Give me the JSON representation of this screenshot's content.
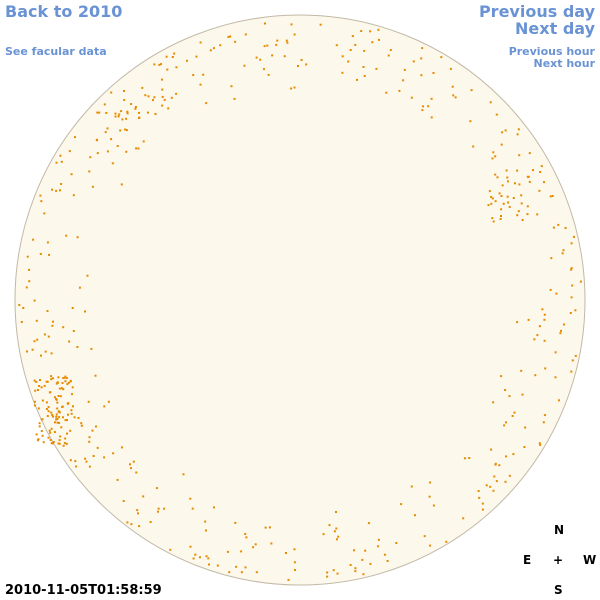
{
  "links": {
    "back": "Back to 2010",
    "facular": "See facular data",
    "previous_day": "Previous day",
    "next_day": "Next day",
    "previous_hour": "Previous hour",
    "next_hour": "Next hour"
  },
  "timestamp": "2010-11-05T01:58:59",
  "compass": {
    "north": "N",
    "south": "S",
    "east": "E",
    "west": "W",
    "center": "+"
  }
}
